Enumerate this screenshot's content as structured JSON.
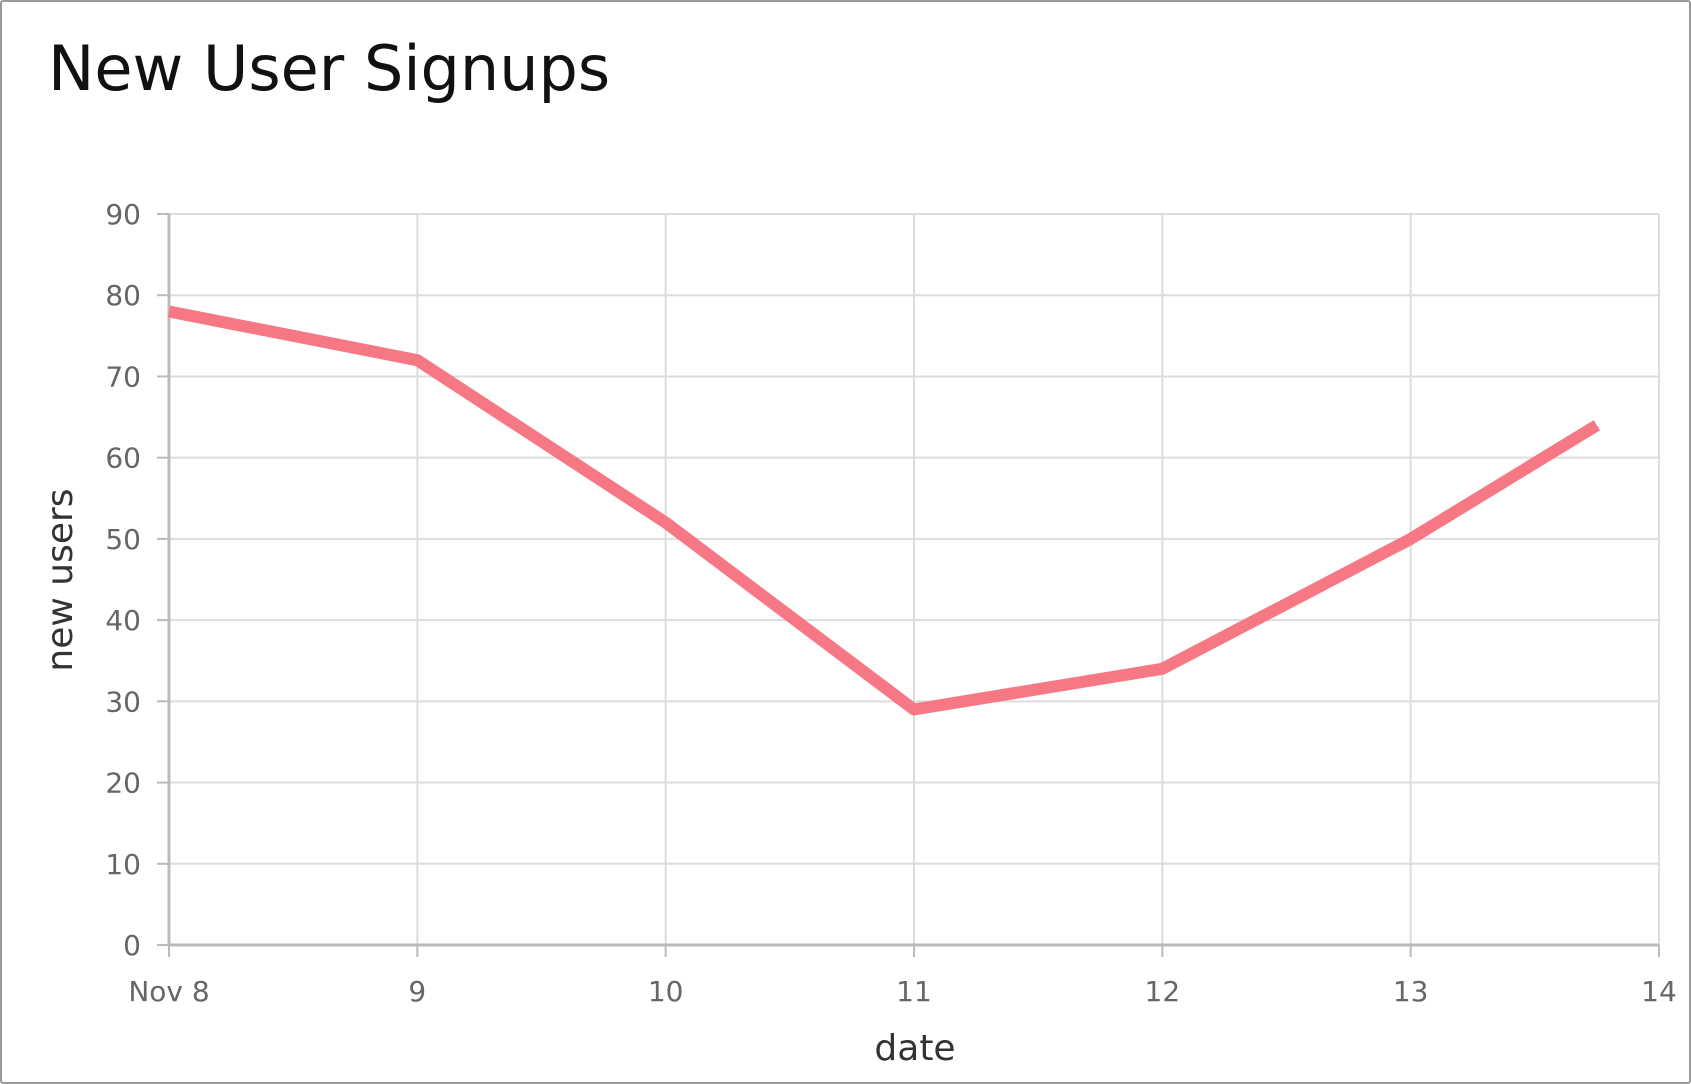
{
  "chart_data": {
    "type": "line",
    "title": "New User Signups",
    "xlabel": "date",
    "ylabel": "new users",
    "x_tick_labels": [
      "Nov 8",
      "9",
      "10",
      "11",
      "12",
      "13",
      "14"
    ],
    "x_ticks": [
      "2023-11-08",
      "2023-11-09",
      "2023-11-10",
      "2023-11-11",
      "2023-11-12",
      "2023-11-13",
      "2023-11-14"
    ],
    "ylim": [
      0,
      90
    ],
    "y_ticks": [
      0,
      10,
      20,
      30,
      40,
      50,
      60,
      70,
      80,
      90
    ],
    "grid": true,
    "series": [
      {
        "color": "#f67884",
        "points": [
          {
            "x": "2023-11-08 00:00",
            "y": 78
          },
          {
            "x": "2023-11-09 00:00",
            "y": 72
          },
          {
            "x": "2023-11-10 00:00",
            "y": 52
          },
          {
            "x": "2023-11-11 00:00",
            "y": 29
          },
          {
            "x": "2023-11-12 00:00",
            "y": 34
          },
          {
            "x": "2023-11-13 00:00",
            "y": 50
          },
          {
            "x": "2023-11-13 18:00",
            "y": 64
          }
        ]
      }
    ]
  }
}
